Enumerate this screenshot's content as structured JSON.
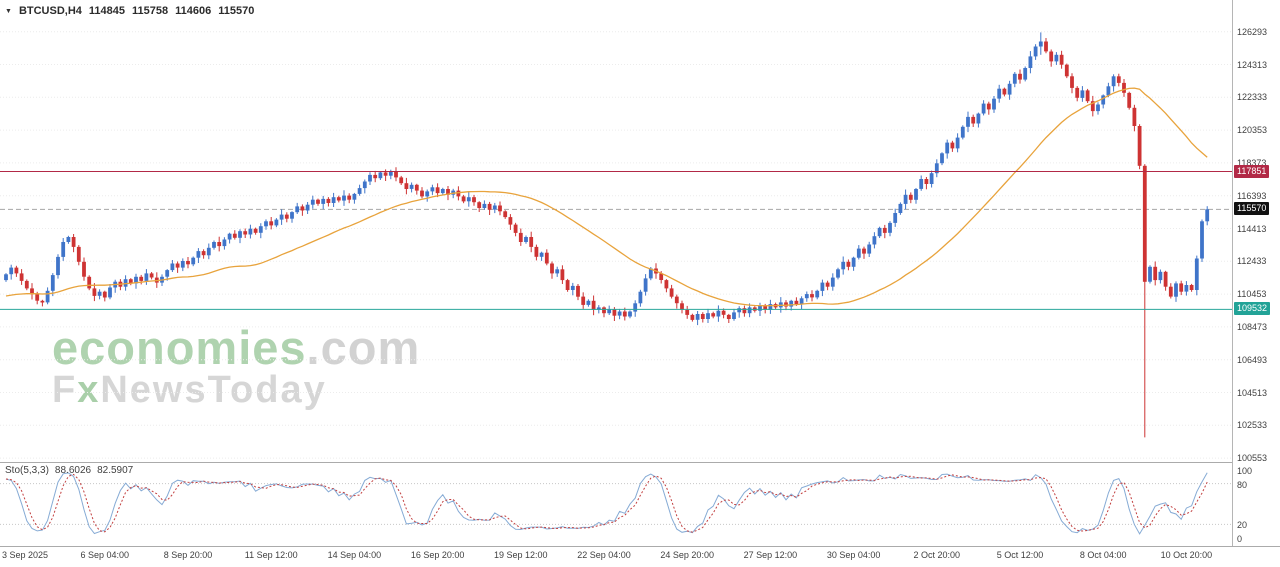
{
  "window": {
    "menu_icon": "▼",
    "symbol_timeframe": "BTCUSD,H4",
    "ohlc": {
      "open": "114845",
      "high": "115758",
      "low": "114606",
      "close": "115570"
    }
  },
  "watermark": {
    "brand": "economies",
    "brand_suffix": ".com",
    "sub_f": "F",
    "sub_x": "x",
    "sub_rest": "NewsToday"
  },
  "indicator": {
    "name": "Sto(5,3,3)",
    "value_main": "88.6026",
    "value_signal": "82.5907",
    "axis_ticks": [
      100,
      80,
      20,
      0
    ],
    "levels": [
      80,
      20
    ]
  },
  "price_axis": {
    "boxes": [
      {
        "name": "resistance-price-label",
        "value": "117851",
        "level": 117851,
        "color": "#B22946"
      },
      {
        "name": "last-price-label",
        "value": "115570",
        "level": 115570,
        "color": "#111111"
      },
      {
        "name": "support-price-label",
        "value": "109532",
        "level": 109532,
        "color": "#22A397"
      }
    ]
  },
  "colors": {
    "bull": "#3F74C9",
    "bear": "#CE3333",
    "ma": "#E8A33C",
    "resistance": "#B22946",
    "support": "#2AA79B",
    "last_line": "#A6A6A6",
    "grid": "#ECECEC",
    "sto_main": "#86ABD5",
    "sto_signal": "#C24040",
    "axis_text": "#3F3F3F"
  },
  "time_axis": {
    "labels": [
      {
        "i": 3,
        "t": "3 Sep 2025"
      },
      {
        "i": 19,
        "t": "6 Sep 04:00"
      },
      {
        "i": 35,
        "t": "8 Sep 20:00"
      },
      {
        "i": 51,
        "t": "11 Sep 12:00"
      },
      {
        "i": 67,
        "t": "14 Sep 04:00"
      },
      {
        "i": 83,
        "t": "16 Sep 20:00"
      },
      {
        "i": 99,
        "t": "19 Sep 12:00"
      },
      {
        "i": 115,
        "t": "22 Sep 04:00"
      },
      {
        "i": 131,
        "t": "24 Sep 20:00"
      },
      {
        "i": 147,
        "t": "27 Sep 12:00"
      },
      {
        "i": 163,
        "t": "30 Sep 04:00"
      },
      {
        "i": 179,
        "t": "2 Oct 20:00"
      },
      {
        "i": 195,
        "t": "5 Oct 12:00"
      },
      {
        "i": 211,
        "t": "8 Oct 04:00"
      },
      {
        "i": 227,
        "t": "10 Oct 20:00"
      }
    ]
  },
  "chart_data": {
    "type": "candlestick",
    "symbol": "BTCUSD",
    "timeframe": "H4",
    "start": "2025-09-03 00:00",
    "interval_hours": 4,
    "ylim": [
      100440,
      126700
    ],
    "y_ticks": [
      126293,
      124313,
      122333,
      120353,
      118373,
      116393,
      114413,
      112433,
      110453,
      108473,
      106493,
      104513,
      102533,
      100553
    ],
    "levels": {
      "resistance": 117851,
      "support": 109532,
      "last": 115570
    },
    "first_open": 111300,
    "closes": [
      111650,
      112050,
      111700,
      111250,
      110800,
      110450,
      110050,
      109950,
      110650,
      111600,
      112700,
      113600,
      113900,
      113300,
      112400,
      111500,
      110800,
      110350,
      110600,
      110250,
      110850,
      111200,
      110900,
      111350,
      111100,
      111500,
      111250,
      111700,
      111450,
      111150,
      111500,
      111900,
      112300,
      112050,
      112450,
      112250,
      112650,
      113050,
      112800,
      113250,
      113600,
      113350,
      113750,
      114100,
      113850,
      114250,
      114050,
      114400,
      114150,
      114550,
      114850,
      114600,
      114950,
      115250,
      115000,
      115400,
      115750,
      115500,
      115850,
      116150,
      115900,
      116200,
      115950,
      116300,
      116100,
      116400,
      116150,
      116500,
      116850,
      117250,
      117650,
      117450,
      117800,
      117600,
      117850,
      117500,
      117150,
      116800,
      117050,
      116700,
      116350,
      116650,
      116900,
      116550,
      116800,
      116450,
      116700,
      116350,
      116050,
      116300,
      116000,
      115650,
      115900,
      115550,
      115800,
      115450,
      115100,
      114650,
      114150,
      113600,
      113900,
      113300,
      112700,
      112950,
      112300,
      111700,
      111950,
      111300,
      110700,
      110950,
      110300,
      109800,
      110050,
      109500,
      109650,
      109300,
      109550,
      109150,
      109400,
      109100,
      109400,
      109900,
      110600,
      111400,
      112000,
      111700,
      111300,
      110800,
      110300,
      109900,
      109500,
      109200,
      108900,
      109250,
      108950,
      109300,
      109100,
      109450,
      109200,
      108950,
      109350,
      109600,
      109300,
      109650,
      109450,
      109750,
      109500,
      109850,
      109650,
      109950,
      109700,
      110050,
      109850,
      110200,
      110450,
      110250,
      110650,
      111150,
      110900,
      111450,
      111950,
      112400,
      112100,
      112650,
      113200,
      112900,
      113450,
      113950,
      114450,
      114150,
      114750,
      115350,
      115900,
      116450,
      116150,
      116800,
      117400,
      117100,
      117750,
      118350,
      118950,
      119600,
      119250,
      119900,
      120550,
      121150,
      120750,
      121350,
      121950,
      121600,
      122250,
      122850,
      122500,
      123150,
      123750,
      123400,
      124100,
      124800,
      125400,
      125700,
      125100,
      124500,
      124900,
      124300,
      123600,
      122900,
      122300,
      122750,
      122100,
      121500,
      121900,
      122450,
      123000,
      123600,
      123200,
      122600,
      121700,
      120600,
      118200,
      111200,
      112100,
      111300,
      111800,
      110900,
      110300,
      111100,
      110600,
      111000,
      110700,
      112600,
      114845,
      115570
    ],
    "wick_pattern": [
      70,
      180,
      110,
      260,
      90,
      320,
      140,
      60,
      210,
      120,
      160,
      240
    ],
    "overrides": {
      "199": [
        125400,
        126250,
        124900,
        125700
      ],
      "219": [
        118200,
        118300,
        101800,
        111200
      ],
      "231": [
        114845,
        115758,
        114606,
        115570
      ]
    },
    "ma": {
      "type": "SMA",
      "period": 34,
      "seed": 110300
    },
    "indicator": {
      "type": "stochastic",
      "k": 5,
      "slowing": 3,
      "d": 3,
      "range": [
        0,
        100
      ]
    }
  }
}
